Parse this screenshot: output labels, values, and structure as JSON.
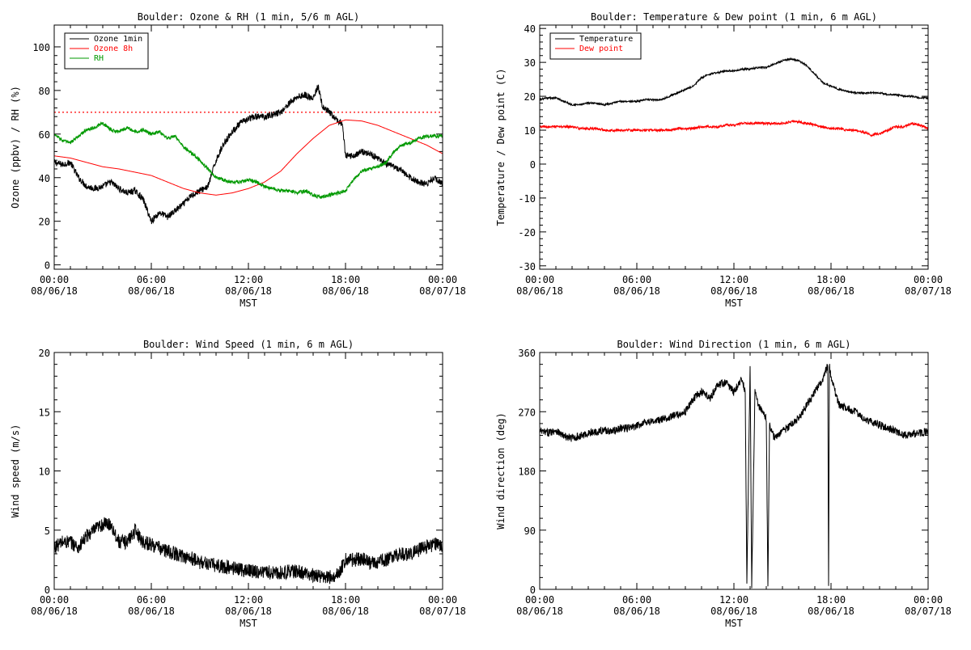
{
  "page": {
    "background": "#ffffff"
  },
  "chart_data": [
    {
      "id": "ozone-rh",
      "type": "line",
      "title": "Boulder: Ozone & RH (1 min, 5/6 m AGL)",
      "xlabel": "MST",
      "ylabel": "Ozone (ppbv) / RH (%)",
      "xlim": [
        0,
        24
      ],
      "ylim": [
        -2,
        110
      ],
      "yticks": [
        0,
        20,
        40,
        60,
        80,
        100
      ],
      "yticks_labels": [
        "0",
        "20",
        "40",
        "60",
        "80",
        "100"
      ],
      "xticks": [
        0,
        6,
        12,
        18,
        24
      ],
      "xtick_labels": [
        [
          "00:00",
          "08/06/18"
        ],
        [
          "06:00",
          "08/06/18"
        ],
        [
          "12:00",
          "08/06/18"
        ],
        [
          "18:00",
          "08/06/18"
        ],
        [
          "00:00",
          "08/07/18"
        ]
      ],
      "legend_position": "top-left",
      "reference_line": {
        "y": 70,
        "color": "#ff0000",
        "style": "dotted"
      },
      "series": [
        {
          "name": "Ozone 1min",
          "color": "#000000",
          "noise": 1.5,
          "x": [
            0,
            0.5,
            1,
            1.5,
            2,
            2.5,
            3,
            3.5,
            4,
            4.5,
            5,
            5.5,
            6,
            6.5,
            7,
            7.5,
            8,
            8.5,
            9,
            9.5,
            10,
            10.5,
            11,
            11.5,
            12,
            12.5,
            13,
            13.5,
            14,
            14.5,
            15,
            15.5,
            16,
            16.3,
            16.6,
            17,
            17.5,
            17.8,
            18,
            18.5,
            19,
            19.5,
            20,
            20.5,
            21,
            21.5,
            22,
            22.5,
            23,
            23.5,
            24
          ],
          "y": [
            47,
            46,
            47,
            40,
            36,
            35,
            36,
            38,
            35,
            33,
            34,
            30,
            20,
            24,
            22,
            25,
            28,
            32,
            34,
            36,
            48,
            56,
            61,
            65,
            67,
            68,
            68,
            69,
            70,
            74,
            77,
            78,
            76,
            82,
            72,
            70,
            66,
            65,
            50,
            50,
            52,
            51,
            49,
            46,
            45,
            43,
            40,
            38,
            37,
            40,
            37
          ]
        },
        {
          "name": "Ozone 8h",
          "color": "#ff0000",
          "noise": 0,
          "x": [
            0,
            1,
            2,
            3,
            4,
            5,
            6,
            7,
            8,
            9,
            10,
            11,
            12,
            13,
            14,
            15,
            16,
            17,
            18,
            19,
            20,
            21,
            22,
            23,
            24
          ],
          "y": [
            50,
            49,
            47,
            45,
            44,
            42.5,
            41,
            38,
            35,
            33,
            32,
            33,
            35,
            38,
            43,
            51,
            58,
            64,
            66.5,
            66,
            64,
            61,
            58,
            55,
            51
          ]
        },
        {
          "name": "RH",
          "color": "#009900",
          "noise": 0.8,
          "x": [
            0,
            0.5,
            1,
            1.5,
            2,
            2.5,
            3,
            3.5,
            4,
            4.5,
            5,
            5.5,
            6,
            6.5,
            7,
            7.5,
            8,
            8.5,
            9,
            9.5,
            10,
            10.5,
            11,
            11.5,
            12,
            12.5,
            13,
            13.5,
            14,
            14.5,
            15,
            15.5,
            16,
            16.5,
            17,
            17.5,
            18,
            18.5,
            19,
            19.5,
            20,
            20.5,
            21,
            21.5,
            22,
            22.5,
            23,
            23.5,
            24
          ],
          "y": [
            60,
            57,
            56,
            59,
            62,
            63,
            65,
            62,
            61,
            63,
            61,
            62,
            60,
            61,
            58,
            59,
            54,
            51,
            48,
            44,
            40,
            39,
            38,
            38,
            39,
            38,
            36,
            35,
            34,
            34,
            33,
            34,
            32,
            31,
            32,
            33,
            34,
            39,
            43,
            44,
            45,
            47,
            52,
            55,
            56,
            58,
            59,
            59,
            59
          ]
        }
      ]
    },
    {
      "id": "temp-dew",
      "type": "line",
      "title": "Boulder: Temperature & Dew point (1 min, 6 m AGL)",
      "xlabel": "MST",
      "ylabel": "Temperature / Dew point (C)",
      "xlim": [
        0,
        24
      ],
      "ylim": [
        -31,
        41
      ],
      "yticks": [
        -30,
        -20,
        -10,
        0,
        10,
        20,
        30,
        40
      ],
      "yticks_labels": [
        "-30",
        "-20",
        "-10",
        "0",
        "10",
        "20",
        "30",
        "40"
      ],
      "xticks": [
        0,
        6,
        12,
        18,
        24
      ],
      "xtick_labels": [
        [
          "00:00",
          "08/06/18"
        ],
        [
          "06:00",
          "08/06/18"
        ],
        [
          "12:00",
          "08/06/18"
        ],
        [
          "18:00",
          "08/06/18"
        ],
        [
          "00:00",
          "08/07/18"
        ]
      ],
      "legend_position": "top-left",
      "series": [
        {
          "name": "Temperature",
          "color": "#000000",
          "noise": 0.25,
          "x": [
            0,
            0.5,
            1,
            1.5,
            2,
            2.5,
            3,
            3.5,
            4,
            4.5,
            5,
            5.5,
            6,
            6.5,
            7,
            7.5,
            8,
            8.5,
            9,
            9.5,
            10,
            10.5,
            11,
            11.5,
            12,
            12.5,
            13,
            13.5,
            14,
            14.5,
            15,
            15.5,
            16,
            16.5,
            17,
            17.5,
            18,
            18.5,
            19,
            19.5,
            20,
            20.5,
            21,
            21.5,
            22,
            22.5,
            23,
            23.5,
            24
          ],
          "y": [
            19,
            19.5,
            19.5,
            18.5,
            17.5,
            17.5,
            18,
            18,
            17.5,
            18,
            18.5,
            18.5,
            18.5,
            19,
            19,
            19,
            20,
            21,
            22,
            23,
            25.5,
            26.5,
            27,
            27.5,
            27.5,
            28,
            28,
            28.5,
            28.5,
            29.5,
            30.5,
            31,
            30.5,
            29,
            26.5,
            24,
            23,
            22,
            21.5,
            21,
            21,
            21,
            21,
            20.5,
            20.5,
            20,
            20,
            19.5,
            19.5
          ]
        },
        {
          "name": "Dew point",
          "color": "#ff0000",
          "noise": 0.35,
          "x": [
            0,
            0.5,
            1,
            1.5,
            2,
            2.5,
            3,
            3.5,
            4,
            4.5,
            5,
            5.5,
            6,
            6.5,
            7,
            7.5,
            8,
            8.5,
            9,
            9.5,
            10,
            10.5,
            11,
            11.5,
            12,
            12.5,
            13,
            13.5,
            14,
            14.5,
            15,
            15.5,
            16,
            16.5,
            17,
            17.5,
            18,
            18.5,
            19,
            19.5,
            20,
            20.5,
            21,
            21.5,
            22,
            22.5,
            23,
            23.5,
            24
          ],
          "y": [
            11,
            11,
            11,
            11,
            11,
            10.5,
            10.5,
            10.5,
            10,
            10,
            10,
            10,
            10,
            10,
            10,
            10,
            10,
            10.5,
            10.5,
            10.5,
            11,
            11,
            11,
            11.5,
            11.5,
            12,
            12,
            12,
            12,
            12,
            12,
            12.5,
            12.5,
            12,
            11.5,
            11,
            10.5,
            10.5,
            10,
            10,
            9.5,
            8.5,
            9,
            10,
            11,
            11,
            12,
            11.5,
            10.5
          ]
        }
      ]
    },
    {
      "id": "wind-speed",
      "type": "line",
      "title": "Boulder: Wind Speed (1 min, 6 m AGL)",
      "xlabel": "MST",
      "ylabel": "Wind speed (m/s)",
      "xlim": [
        0,
        24
      ],
      "ylim": [
        0,
        20
      ],
      "yticks": [
        0,
        5,
        10,
        15,
        20
      ],
      "yticks_labels": [
        "0",
        "5",
        "10",
        "15",
        "20"
      ],
      "xticks": [
        0,
        6,
        12,
        18,
        24
      ],
      "xtick_labels": [
        [
          "00:00",
          "08/06/18"
        ],
        [
          "06:00",
          "08/06/18"
        ],
        [
          "12:00",
          "08/06/18"
        ],
        [
          "18:00",
          "08/06/18"
        ],
        [
          "00:00",
          "08/07/18"
        ]
      ],
      "series": [
        {
          "name": "",
          "color": "#000000",
          "noise": 0.6,
          "x": [
            0,
            0.5,
            1,
            1.5,
            2,
            2.5,
            3,
            3.5,
            4,
            4.5,
            5,
            5.5,
            6,
            6.5,
            7,
            7.5,
            8,
            8.5,
            9,
            9.5,
            10,
            10.5,
            11,
            11.5,
            12,
            12.5,
            13,
            13.5,
            14,
            14.5,
            15,
            15.5,
            16,
            16.5,
            17,
            17.5,
            18,
            18.5,
            19,
            19.5,
            20,
            20.5,
            21,
            21.5,
            22,
            22.5,
            23,
            23.5,
            24
          ],
          "y": [
            3.5,
            4,
            4,
            3.5,
            4.5,
            5,
            5.5,
            5.5,
            4,
            4,
            5,
            4,
            3.8,
            3.5,
            3.2,
            3,
            2.8,
            2.6,
            2.3,
            2.2,
            2,
            1.9,
            1.8,
            1.7,
            1.6,
            1.5,
            1.5,
            1.4,
            1.4,
            1.5,
            1.5,
            1.3,
            1.2,
            1.1,
            1.0,
            1.2,
            2.5,
            2.5,
            2.6,
            2.2,
            2.3,
            2.5,
            2.8,
            3.0,
            3.0,
            3.3,
            3.6,
            3.8,
            3.7
          ]
        }
      ]
    },
    {
      "id": "wind-direction",
      "type": "line",
      "title": "Boulder: Wind Direction (1 min, 6 m AGL)",
      "xlabel": "MST",
      "ylabel": "Wind direction (deg)",
      "xlim": [
        0,
        24
      ],
      "ylim": [
        0,
        360
      ],
      "yticks": [
        0,
        90,
        180,
        270,
        360
      ],
      "yticks_labels": [
        "0",
        "90",
        "180",
        "270",
        "360"
      ],
      "xticks": [
        0,
        6,
        12,
        18,
        24
      ],
      "xtick_labels": [
        [
          "00:00",
          "08/06/18"
        ],
        [
          "06:00",
          "08/06/18"
        ],
        [
          "12:00",
          "08/06/18"
        ],
        [
          "18:00",
          "08/06/18"
        ],
        [
          "00:00",
          "08/07/18"
        ]
      ],
      "series": [
        {
          "name": "",
          "color": "#000000",
          "noise": 6,
          "x": [
            0,
            0.5,
            1,
            1.5,
            2,
            2.5,
            3,
            3.5,
            4,
            4.5,
            5,
            5.5,
            6,
            6.5,
            7,
            7.5,
            8,
            8.5,
            9,
            9.5,
            10,
            10.5,
            11,
            11.5,
            12,
            12.5,
            12.7,
            12.8,
            13,
            13.1,
            13.3,
            13.5,
            14,
            14.1,
            14.2,
            14.5,
            15,
            15.5,
            16,
            16.5,
            17,
            17.5,
            17.8,
            17.85,
            17.9,
            18,
            18.5,
            19,
            19.5,
            20,
            20.5,
            21,
            21.5,
            22,
            22.5,
            23,
            23.5,
            24
          ],
          "y": [
            240,
            238,
            242,
            232,
            230,
            233,
            237,
            240,
            242,
            240,
            245,
            245,
            248,
            255,
            255,
            258,
            262,
            265,
            270,
            290,
            300,
            290,
            310,
            315,
            300,
            320,
            300,
            5,
            340,
            5,
            300,
            280,
            260,
            5,
            250,
            230,
            240,
            250,
            260,
            280,
            300,
            320,
            340,
            5,
            340,
            320,
            280,
            275,
            270,
            260,
            255,
            250,
            245,
            240,
            235,
            235,
            238,
            240
          ]
        }
      ]
    }
  ]
}
